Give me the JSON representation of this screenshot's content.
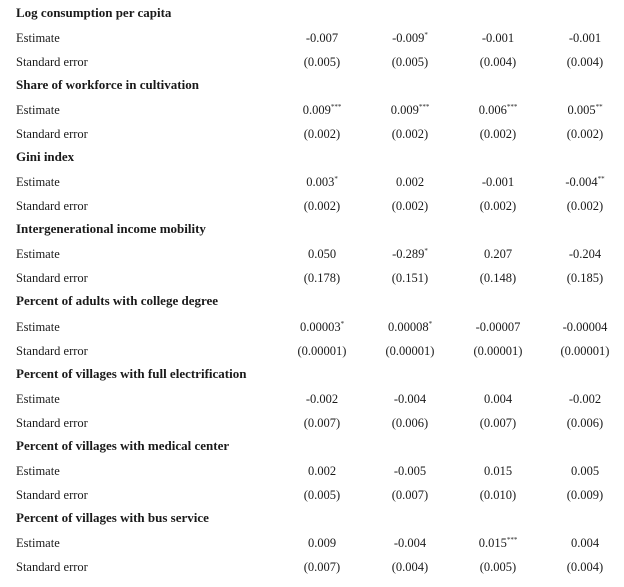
{
  "row_labels": {
    "estimate": "Estimate",
    "standard_error": "Standard error"
  },
  "sections": [
    {
      "title": "Log consumption per capita",
      "estimates": [
        {
          "value": "-0.007",
          "stars": ""
        },
        {
          "value": "-0.009",
          "stars": "*"
        },
        {
          "value": "-0.001",
          "stars": ""
        },
        {
          "value": "-0.001",
          "stars": ""
        }
      ],
      "standard_errors": [
        "(0.005)",
        "(0.005)",
        "(0.004)",
        "(0.004)"
      ]
    },
    {
      "title": "Share of workforce in cultivation",
      "estimates": [
        {
          "value": "0.009",
          "stars": "***"
        },
        {
          "value": "0.009",
          "stars": "***"
        },
        {
          "value": "0.006",
          "stars": "***"
        },
        {
          "value": "0.005",
          "stars": "**"
        }
      ],
      "standard_errors": [
        "(0.002)",
        "(0.002)",
        "(0.002)",
        "(0.002)"
      ]
    },
    {
      "title": "Gini index",
      "estimates": [
        {
          "value": "0.003",
          "stars": "*"
        },
        {
          "value": "0.002",
          "stars": ""
        },
        {
          "value": "-0.001",
          "stars": ""
        },
        {
          "value": "-0.004",
          "stars": "**"
        }
      ],
      "standard_errors": [
        "(0.002)",
        "(0.002)",
        "(0.002)",
        "(0.002)"
      ]
    },
    {
      "title": "Intergenerational income mobility",
      "estimates": [
        {
          "value": "0.050",
          "stars": ""
        },
        {
          "value": "-0.289",
          "stars": "*"
        },
        {
          "value": "0.207",
          "stars": ""
        },
        {
          "value": "-0.204",
          "stars": ""
        }
      ],
      "standard_errors": [
        "(0.178)",
        "(0.151)",
        "(0.148)",
        "(0.185)"
      ]
    },
    {
      "title": "Percent of adults with college degree",
      "estimates": [
        {
          "value": "0.00003",
          "stars": "*"
        },
        {
          "value": "0.00008",
          "stars": "*"
        },
        {
          "value": "-0.00007",
          "stars": ""
        },
        {
          "value": "-0.00004",
          "stars": ""
        }
      ],
      "standard_errors": [
        "(0.00001)",
        "(0.00001)",
        "(0.00001)",
        "(0.00001)"
      ]
    },
    {
      "title": "Percent of villages with full electrification",
      "estimates": [
        {
          "value": "-0.002",
          "stars": ""
        },
        {
          "value": "-0.004",
          "stars": ""
        },
        {
          "value": "0.004",
          "stars": ""
        },
        {
          "value": "-0.002",
          "stars": ""
        }
      ],
      "standard_errors": [
        "(0.007)",
        "(0.006)",
        "(0.007)",
        "(0.006)"
      ]
    },
    {
      "title": "Percent of villages with medical center",
      "estimates": [
        {
          "value": "0.002",
          "stars": ""
        },
        {
          "value": "-0.005",
          "stars": ""
        },
        {
          "value": "0.015",
          "stars": ""
        },
        {
          "value": "0.005",
          "stars": ""
        }
      ],
      "standard_errors": [
        "(0.005)",
        "(0.007)",
        "(0.010)",
        "(0.009)"
      ]
    },
    {
      "title": "Percent of villages with bus service",
      "estimates": [
        {
          "value": "0.009",
          "stars": ""
        },
        {
          "value": "-0.004",
          "stars": ""
        },
        {
          "value": "0.015",
          "stars": "***"
        },
        {
          "value": "0.004",
          "stars": ""
        }
      ],
      "standard_errors": [
        "(0.007)",
        "(0.004)",
        "(0.005)",
        "(0.004)"
      ]
    }
  ]
}
